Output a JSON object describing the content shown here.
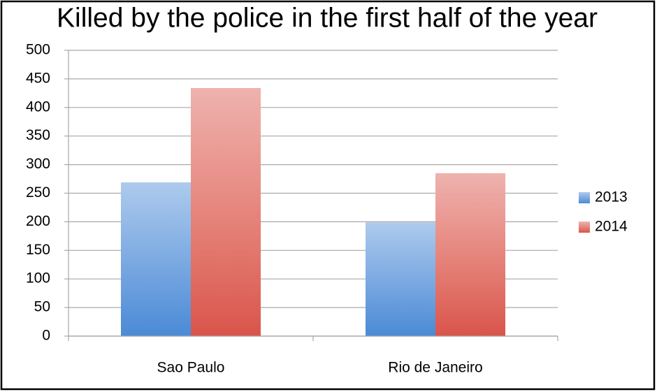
{
  "chart_data": {
    "type": "bar",
    "title": "Killed by the police in the first half of the year",
    "categories": [
      "Sao Paulo",
      "Rio de Janeiro"
    ],
    "series": [
      {
        "name": "2013",
        "color": "#4a8ad6",
        "values": [
          269,
          199
        ]
      },
      {
        "name": "2014",
        "color": "#d9544b",
        "values": [
          434,
          285
        ]
      }
    ],
    "ylim": [
      0,
      500
    ],
    "yticks": [
      0,
      50,
      100,
      150,
      200,
      250,
      300,
      350,
      400,
      450,
      500
    ],
    "grid": true,
    "legend": "right"
  }
}
